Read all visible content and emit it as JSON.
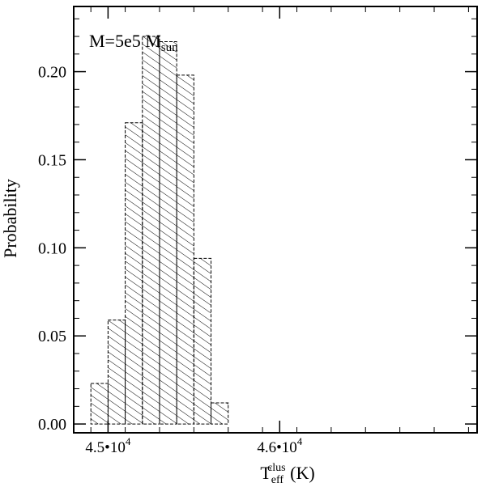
{
  "chart_data": {
    "type": "bar",
    "title": "",
    "annotation": {
      "text": "M=5e5 M",
      "subscript": "sun"
    },
    "xlabel": {
      "main": "T",
      "subscript": "eff",
      "superscript": "clus",
      "unit": " (K)"
    },
    "ylabel": "Probability",
    "xlim": [
      44300,
      46650
    ],
    "ylim": [
      -0.005,
      0.237
    ],
    "bin_width": 100,
    "bins": [
      {
        "start": 44400,
        "value": 0.023
      },
      {
        "start": 44500,
        "value": 0.059
      },
      {
        "start": 44600,
        "value": 0.171
      },
      {
        "start": 44700,
        "value": 0.22
      },
      {
        "start": 44800,
        "value": 0.217
      },
      {
        "start": 44900,
        "value": 0.198
      },
      {
        "start": 45000,
        "value": 0.094
      },
      {
        "start": 45100,
        "value": 0.012
      }
    ],
    "y_ticks": [
      {
        "value": 0.0,
        "label": "0.00"
      },
      {
        "value": 0.05,
        "label": "0.05"
      },
      {
        "value": 0.1,
        "label": "0.10"
      },
      {
        "value": 0.15,
        "label": "0.15"
      },
      {
        "value": 0.2,
        "label": "0.20"
      }
    ],
    "y_minor_step": 0.01,
    "x_ticks": [
      {
        "value": 44500,
        "mantissa": "4.5•10",
        "exponent": "4"
      },
      {
        "value": 45500,
        "mantissa": "4.6•10",
        "exponent": "4"
      }
    ],
    "x_minor_step": 200
  }
}
